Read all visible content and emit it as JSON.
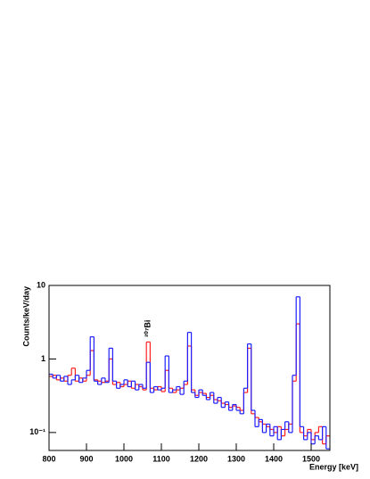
{
  "chart_data": {
    "type": "histogram",
    "log_y": true,
    "xlabel": "Energy [keV]",
    "ylabel": "Counts/keV/day",
    "annotations": [
      {
        "text": "²⁰⁷Bi",
        "x": 1064,
        "y": 2.6
      }
    ],
    "bins": [
      800,
      810,
      820,
      830,
      840,
      850,
      860,
      870,
      880,
      890,
      900,
      910,
      920,
      930,
      940,
      950,
      960,
      970,
      980,
      990,
      1000,
      1010,
      1020,
      1030,
      1040,
      1050,
      1060,
      1070,
      1080,
      1090,
      1100,
      1110,
      1120,
      1130,
      1140,
      1150,
      1160,
      1170,
      1180,
      1190,
      1200,
      1210,
      1220,
      1230,
      1240,
      1250,
      1260,
      1270,
      1280,
      1290,
      1300,
      1310,
      1320,
      1330,
      1340,
      1350,
      1360,
      1370,
      1380,
      1390,
      1400,
      1410,
      1420,
      1430,
      1440,
      1450,
      1460,
      1470,
      1480,
      1490,
      1500,
      1510,
      1520,
      1530,
      1540,
      1550
    ],
    "series": [
      {
        "color": "#ff2020",
        "values": [
          0.58,
          0.6,
          0.52,
          0.55,
          0.5,
          0.6,
          0.75,
          0.5,
          0.55,
          0.5,
          0.6,
          1.3,
          0.52,
          0.5,
          0.48,
          0.5,
          1.0,
          0.45,
          0.48,
          0.42,
          0.45,
          0.5,
          0.4,
          0.45,
          0.42,
          0.38,
          1.7,
          0.4,
          0.38,
          0.42,
          0.36,
          0.7,
          0.4,
          0.35,
          0.38,
          0.4,
          0.45,
          1.5,
          0.38,
          0.32,
          0.35,
          0.34,
          0.3,
          0.32,
          0.28,
          0.27,
          0.25,
          0.24,
          0.22,
          0.23,
          0.22,
          0.2,
          0.35,
          1.4,
          0.18,
          0.16,
          0.14,
          0.13,
          0.12,
          0.11,
          0.1,
          0.12,
          0.09,
          0.11,
          0.13,
          0.5,
          3.0,
          0.1,
          0.09,
          0.11,
          0.08,
          0.1,
          0.12,
          0.07,
          0.09
        ]
      },
      {
        "color": "#2020ff",
        "values": [
          0.62,
          0.55,
          0.6,
          0.5,
          0.58,
          0.45,
          0.52,
          0.6,
          0.48,
          0.55,
          0.7,
          2.0,
          0.5,
          0.45,
          0.55,
          0.48,
          1.4,
          0.5,
          0.4,
          0.45,
          0.52,
          0.42,
          0.5,
          0.38,
          0.45,
          0.4,
          0.9,
          0.35,
          0.42,
          0.38,
          0.4,
          1.1,
          0.35,
          0.38,
          0.42,
          0.33,
          0.5,
          2.3,
          0.35,
          0.3,
          0.38,
          0.32,
          0.28,
          0.35,
          0.25,
          0.3,
          0.22,
          0.26,
          0.2,
          0.24,
          0.2,
          0.18,
          0.4,
          1.6,
          0.2,
          0.12,
          0.15,
          0.1,
          0.13,
          0.09,
          0.12,
          0.08,
          0.11,
          0.14,
          0.1,
          0.6,
          7.0,
          0.12,
          0.08,
          0.1,
          0.07,
          0.09,
          0.08,
          0.12,
          0.06
        ]
      }
    ],
    "xlim": [
      800,
      1550
    ],
    "xticks": [
      800,
      900,
      1000,
      1100,
      1200,
      1300,
      1400,
      1500
    ],
    "ylim": [
      0.057,
      10
    ],
    "yticks": [
      {
        "value": 0.1,
        "label": "10⁻¹"
      },
      1,
      10
    ]
  }
}
